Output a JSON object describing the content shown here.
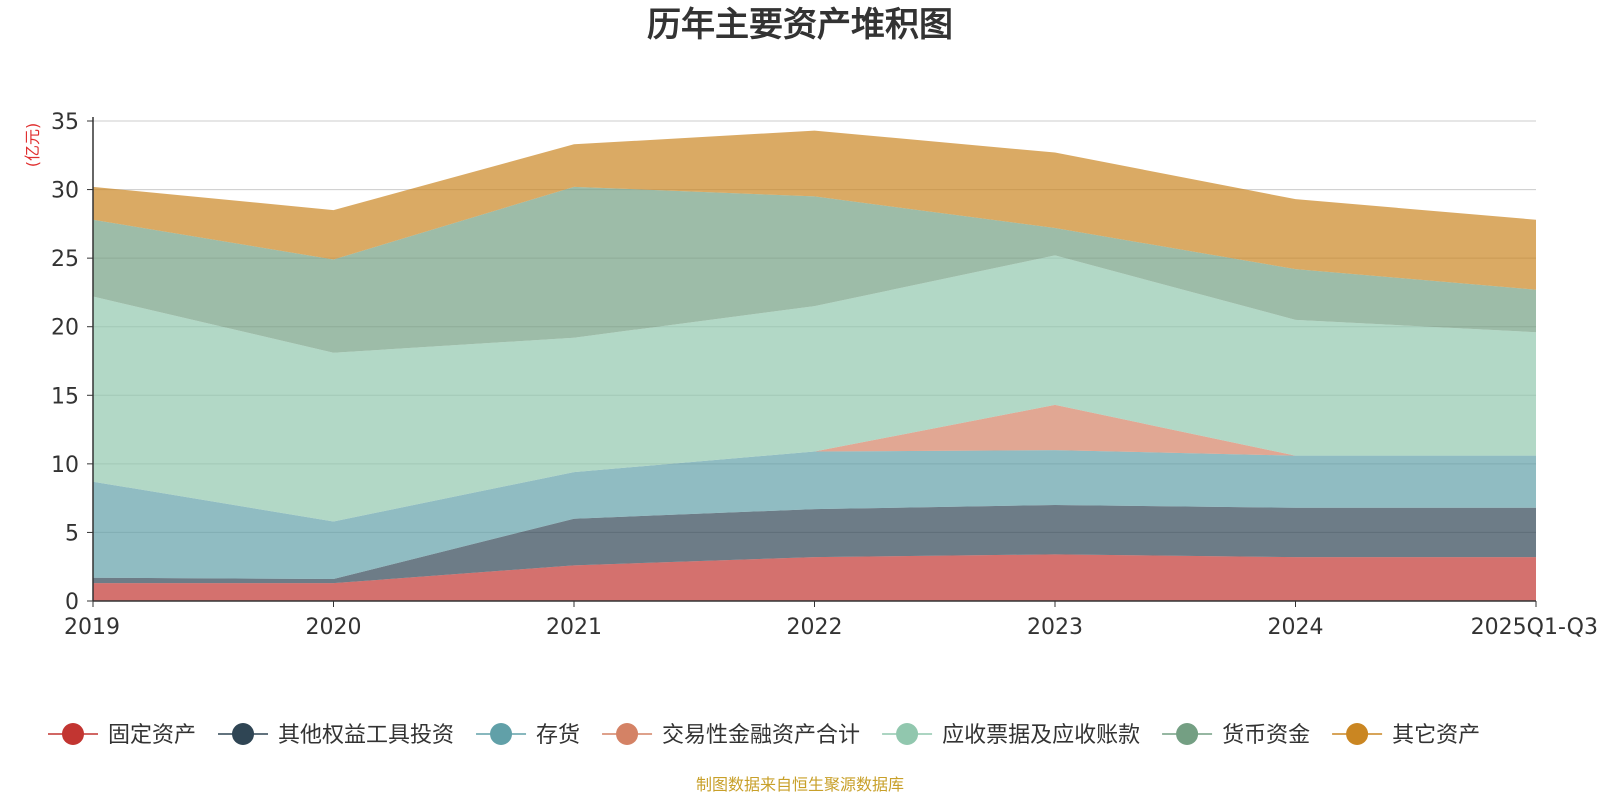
{
  "chart_data": {
    "type": "area",
    "stacked": true,
    "title": "历年主要资产堆积图",
    "ylabel": "(亿元)",
    "ylim": [
      0,
      35
    ],
    "yticks": [
      0,
      5,
      10,
      15,
      20,
      25,
      30,
      35
    ],
    "categories": [
      "2019",
      "2020",
      "2021",
      "2022",
      "2023",
      "2024",
      "2025Q1-Q3"
    ],
    "series": [
      {
        "name": "固定资产",
        "color": "#c23531",
        "values": [
          1.3,
          1.3,
          2.6,
          3.2,
          3.4,
          3.2,
          3.2
        ]
      },
      {
        "name": "其他权益工具投资",
        "color": "#2f4554",
        "values": [
          0.4,
          0.3,
          3.4,
          3.5,
          3.6,
          3.6,
          3.6
        ]
      },
      {
        "name": "存货",
        "color": "#61a0a8",
        "values": [
          7.0,
          4.2,
          3.4,
          4.2,
          4.0,
          3.8,
          3.8
        ]
      },
      {
        "name": "交易性金融资产合计",
        "color": "#d48265",
        "values": [
          0,
          0,
          0,
          0,
          3.3,
          0,
          0
        ]
      },
      {
        "name": "应收票据及应收账款",
        "color": "#91c7ae",
        "values": [
          13.5,
          12.3,
          9.8,
          10.6,
          10.9,
          9.9,
          9.0
        ]
      },
      {
        "name": "货币资金",
        "color": "#749f83",
        "values": [
          5.6,
          6.8,
          11.0,
          8.0,
          2.0,
          3.7,
          3.1
        ]
      },
      {
        "name": "其它资产",
        "color": "#ca8622",
        "values": [
          2.4,
          3.6,
          3.1,
          4.8,
          5.5,
          5.1,
          5.1
        ]
      }
    ],
    "legend_position": "bottom",
    "grid": true
  },
  "source": "制图数据来自恒生聚源数据库",
  "colors": {
    "axis": "#333333",
    "grid": "#cccccc",
    "unit": "#e03030",
    "source": "#c8a02a"
  }
}
